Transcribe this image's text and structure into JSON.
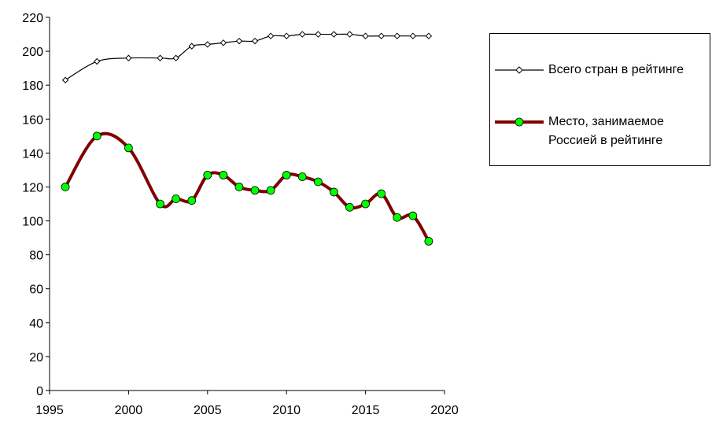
{
  "chart_data": {
    "type": "line",
    "x": [
      1996,
      1998,
      2000,
      2002,
      2003,
      2004,
      2005,
      2006,
      2007,
      2008,
      2009,
      2010,
      2011,
      2012,
      2013,
      2014,
      2015,
      2016,
      2017,
      2018,
      2019
    ],
    "series": [
      {
        "name": "Всего стран в рейтинге",
        "color": "#000000",
        "marker": "diamond",
        "values": [
          183,
          194,
          196,
          196,
          196,
          203,
          204,
          205,
          206,
          206,
          209,
          209,
          210,
          210,
          210,
          210,
          209,
          209,
          209,
          209,
          209
        ]
      },
      {
        "name": "Место, занимаемое Россией в рейтинге",
        "color": "#800000",
        "marker_color": "#00ff00",
        "marker": "circle",
        "values": [
          120,
          150,
          143,
          110,
          113,
          112,
          127,
          127,
          120,
          118,
          118,
          127,
          126,
          123,
          117,
          108,
          110,
          116,
          102,
          103,
          88
        ]
      }
    ],
    "xlim": [
      1995,
      2020
    ],
    "xticks": [
      1995,
      2000,
      2005,
      2010,
      2015,
      2020
    ],
    "ylim": [
      0,
      220
    ],
    "yticks": [
      0,
      20,
      40,
      60,
      80,
      100,
      120,
      140,
      160,
      180,
      200,
      220
    ],
    "grid": false,
    "legend": "right"
  }
}
